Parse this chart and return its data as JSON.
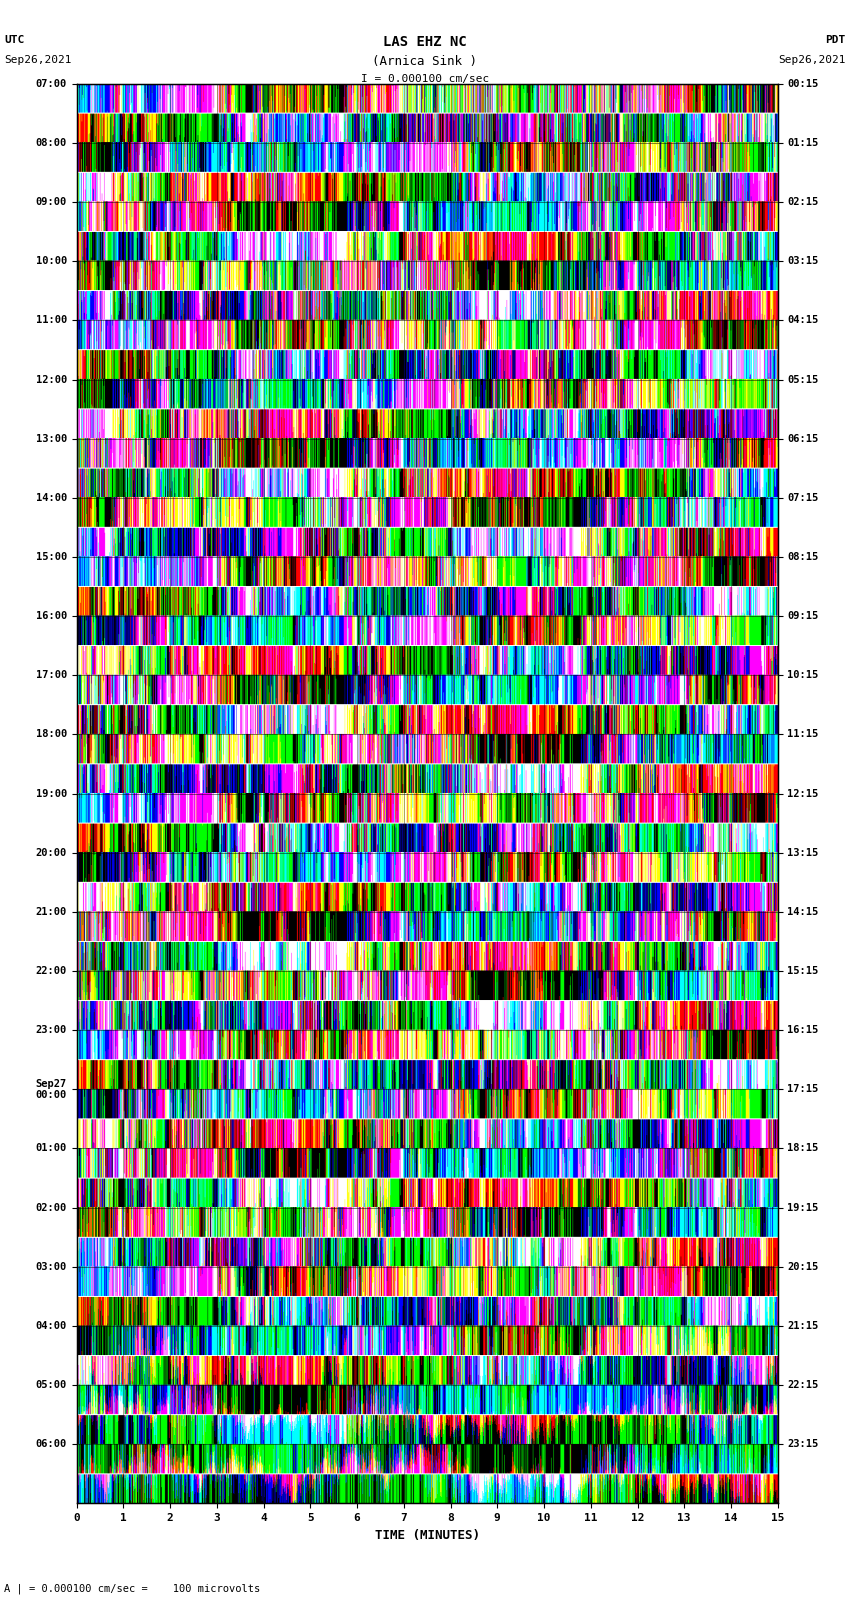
{
  "title_line1": "LAS EHZ NC",
  "title_line2": "(Arnica Sink )",
  "scale_label": "I = 0.000100 cm/sec",
  "bottom_label": "A | = 0.000100 cm/sec =    100 microvolts",
  "left_date": "Sep26,2021",
  "right_date": "Sep26,2021",
  "left_tz": "UTC",
  "right_tz": "PDT",
  "xlabel": "TIME (MINUTES)",
  "left_times": [
    "07:00",
    "08:00",
    "09:00",
    "10:00",
    "11:00",
    "12:00",
    "13:00",
    "14:00",
    "15:00",
    "16:00",
    "17:00",
    "18:00",
    "19:00",
    "20:00",
    "21:00",
    "22:00",
    "23:00",
    "Sep27\n00:00",
    "01:00",
    "02:00",
    "03:00",
    "04:00",
    "05:00",
    "06:00"
  ],
  "right_times": [
    "00:15",
    "01:15",
    "02:15",
    "03:15",
    "04:15",
    "05:15",
    "06:15",
    "07:15",
    "08:15",
    "09:15",
    "10:15",
    "11:15",
    "12:15",
    "13:15",
    "14:15",
    "15:15",
    "16:15",
    "17:15",
    "18:15",
    "19:15",
    "20:15",
    "21:15",
    "22:15",
    "23:15"
  ],
  "n_rows": 24,
  "minutes_per_row": 15,
  "bg_color": "#000000",
  "fig_bg": "#ffffff",
  "seed": 42
}
